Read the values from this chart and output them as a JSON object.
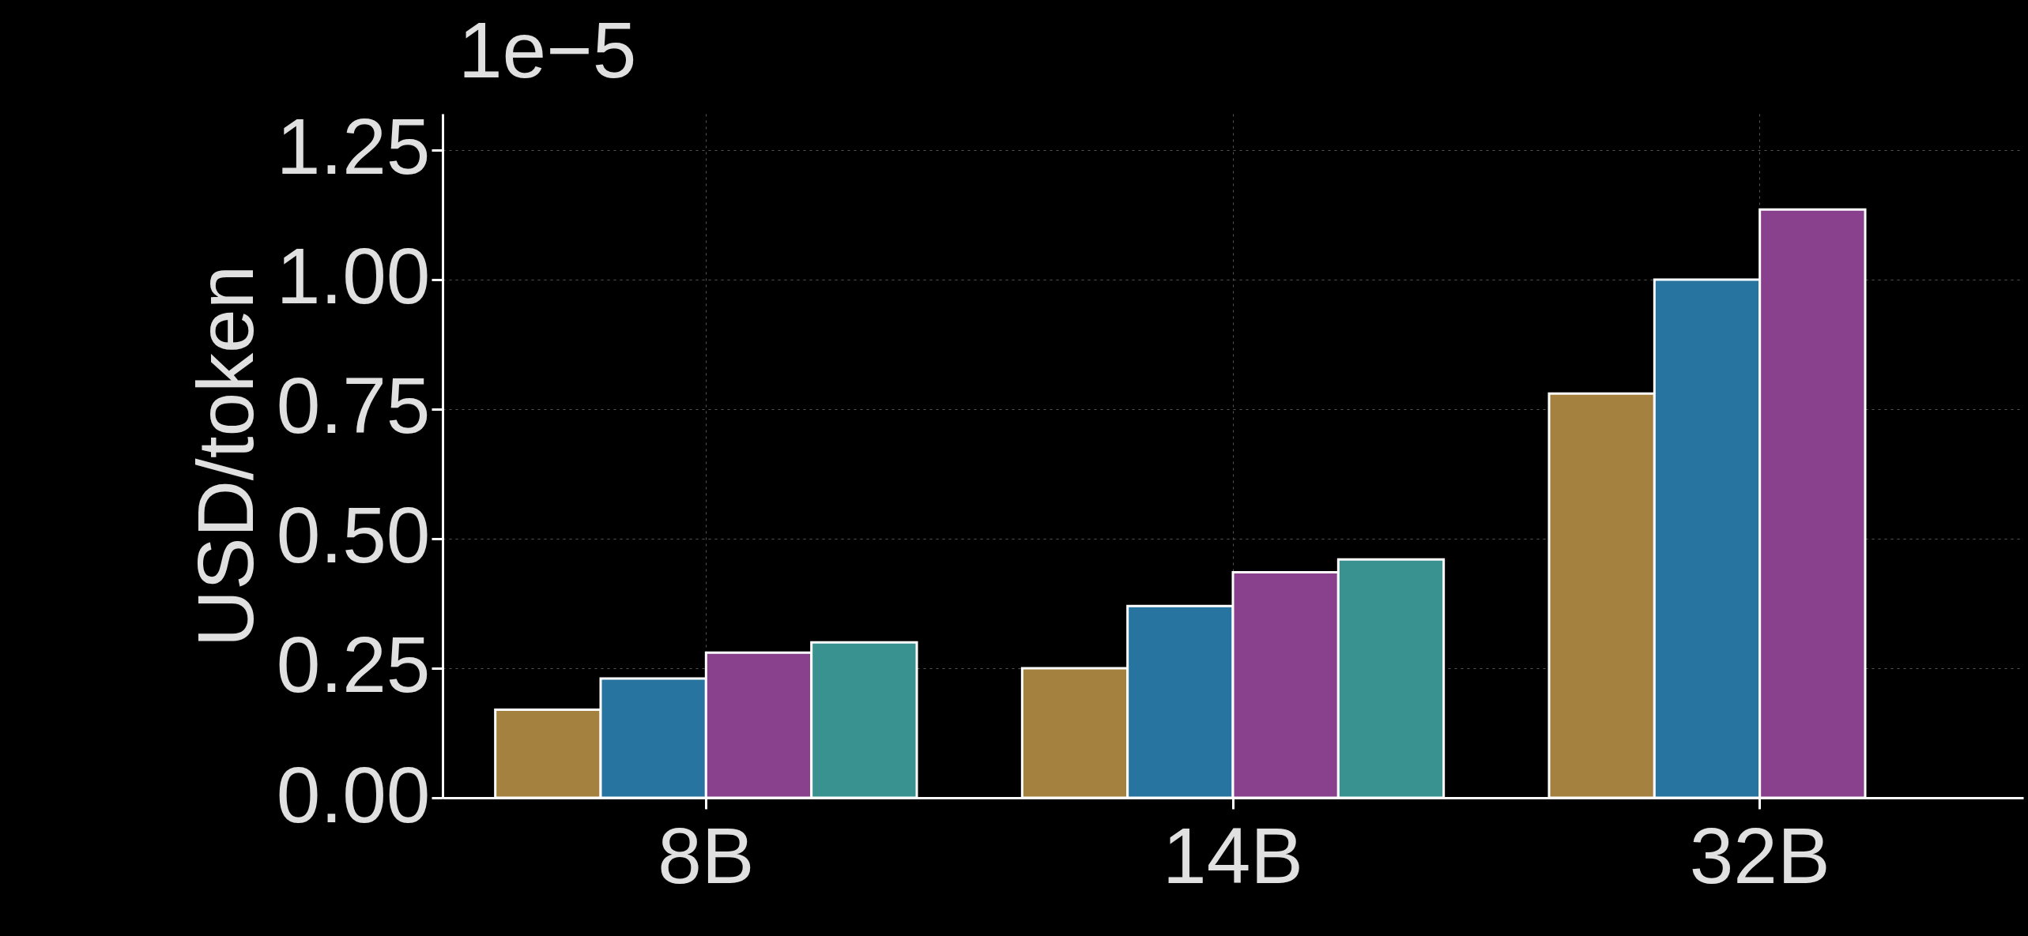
{
  "chart_data": {
    "type": "bar",
    "ylabel": "USD/token",
    "annotations": [
      "1e−5"
    ],
    "categories": [
      "8B",
      "14B",
      "32B"
    ],
    "series": [
      {
        "color": "#a5813f",
        "values": [
          0.17,
          0.25,
          0.78
        ]
      },
      {
        "color": "#2874a0",
        "values": [
          0.23,
          0.37,
          1.0
        ]
      },
      {
        "color": "#8a418d",
        "values": [
          0.28,
          0.435,
          1.135
        ]
      },
      {
        "color": "#3a9290",
        "values": [
          0.3,
          0.46,
          null
        ]
      }
    ],
    "ylim": [
      0,
      1.32
    ],
    "yticks": [
      {
        "value": 0,
        "label": "0.00"
      },
      0.25,
      {
        "value": 0.5,
        "label": "0.50"
      },
      0.75,
      {
        "value": 1,
        "label": "1.00"
      },
      1.25
    ],
    "grid": true,
    "legend": false
  }
}
